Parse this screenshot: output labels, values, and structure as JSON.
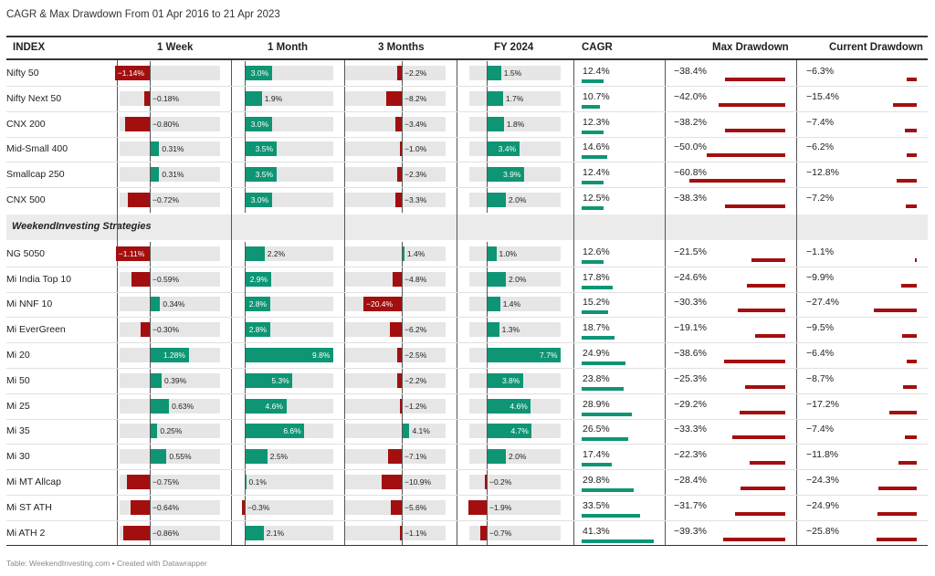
{
  "title": "CAGR & Max Drawdown From 01 Apr 2016 to 21 Apr 2023",
  "footer": "Table: WeekendInvesting.com • Created with Datawrapper",
  "section_label": "WeekendInvesting Strategies",
  "colors": {
    "positive": "#0e9574",
    "negative": "#a30f0f",
    "track": "#e6e6e6"
  },
  "chart_data": {
    "type": "table",
    "columns": [
      "INDEX",
      "1 Week",
      "1 Month",
      "3 Months",
      "FY 2024",
      "CAGR",
      "Max Drawdown",
      "Current Drawdown"
    ],
    "rows": [
      {
        "name": "Nifty 50",
        "w1": -1.14,
        "m1": 3.0,
        "m3": -2.2,
        "fy": 1.5,
        "cagr": 12.4,
        "maxdd": -38.4,
        "curdd": -6.3
      },
      {
        "name": "Nifty Next 50",
        "w1": -0.18,
        "m1": 1.9,
        "m3": -8.2,
        "fy": 1.7,
        "cagr": 10.7,
        "maxdd": -42.0,
        "curdd": -15.4
      },
      {
        "name": "CNX 200",
        "w1": -0.8,
        "m1": 3.0,
        "m3": -3.4,
        "fy": 1.8,
        "cagr": 12.3,
        "maxdd": -38.2,
        "curdd": -7.4
      },
      {
        "name": "Mid-Small 400",
        "w1": 0.31,
        "m1": 3.5,
        "m3": -1.0,
        "fy": 3.4,
        "cagr": 14.6,
        "maxdd": -50.0,
        "curdd": -6.2
      },
      {
        "name": "Smallcap 250",
        "w1": 0.31,
        "m1": 3.5,
        "m3": -2.3,
        "fy": 3.9,
        "cagr": 12.4,
        "maxdd": -60.8,
        "curdd": -12.8
      },
      {
        "name": "CNX 500",
        "w1": -0.72,
        "m1": 3.0,
        "m3": -3.3,
        "fy": 2.0,
        "cagr": 12.5,
        "maxdd": -38.3,
        "curdd": -7.2
      },
      {
        "name": "NG 5050",
        "w1": -1.11,
        "m1": 2.2,
        "m3": 1.4,
        "fy": 1.0,
        "cagr": 12.6,
        "maxdd": -21.5,
        "curdd": -1.1
      },
      {
        "name": "Mi India Top 10",
        "w1": -0.59,
        "m1": 2.9,
        "m3": -4.8,
        "fy": 2.0,
        "cagr": 17.8,
        "maxdd": -24.6,
        "curdd": -9.9
      },
      {
        "name": "Mi NNF 10",
        "w1": 0.34,
        "m1": 2.8,
        "m3": -20.4,
        "fy": 1.4,
        "cagr": 15.2,
        "maxdd": -30.3,
        "curdd": -27.4
      },
      {
        "name": "Mi EverGreen",
        "w1": -0.3,
        "m1": 2.8,
        "m3": -6.2,
        "fy": 1.3,
        "cagr": 18.7,
        "maxdd": -19.1,
        "curdd": -9.5
      },
      {
        "name": "Mi 20",
        "w1": 1.28,
        "m1": 9.8,
        "m3": -2.5,
        "fy": 7.7,
        "cagr": 24.9,
        "maxdd": -38.6,
        "curdd": -6.4
      },
      {
        "name": "Mi 50",
        "w1": 0.39,
        "m1": 5.3,
        "m3": -2.2,
        "fy": 3.8,
        "cagr": 23.8,
        "maxdd": -25.3,
        "curdd": -8.7
      },
      {
        "name": "Mi 25",
        "w1": 0.63,
        "m1": 4.6,
        "m3": -1.2,
        "fy": 4.6,
        "cagr": 28.9,
        "maxdd": -29.2,
        "curdd": -17.2
      },
      {
        "name": "Mi 35",
        "w1": 0.25,
        "m1": 6.6,
        "m3": 4.1,
        "fy": 4.7,
        "cagr": 26.5,
        "maxdd": -33.3,
        "curdd": -7.4
      },
      {
        "name": "Mi 30",
        "w1": 0.55,
        "m1": 2.5,
        "m3": -7.1,
        "fy": 2.0,
        "cagr": 17.4,
        "maxdd": -22.3,
        "curdd": -11.8
      },
      {
        "name": "Mi MT Allcap",
        "w1": -0.75,
        "m1": 0.1,
        "m3": -10.9,
        "fy": -0.2,
        "cagr": 29.8,
        "maxdd": -28.4,
        "curdd": -24.3
      },
      {
        "name": "Mi ST ATH",
        "w1": -0.64,
        "m1": -0.3,
        "m3": -5.6,
        "fy": -1.9,
        "cagr": 33.5,
        "maxdd": -31.7,
        "curdd": -24.9
      },
      {
        "name": "Mi ATH 2",
        "w1": -0.86,
        "m1": 2.1,
        "m3": -1.1,
        "fy": -0.7,
        "cagr": 41.3,
        "maxdd": -39.3,
        "curdd": -25.8
      }
    ]
  }
}
